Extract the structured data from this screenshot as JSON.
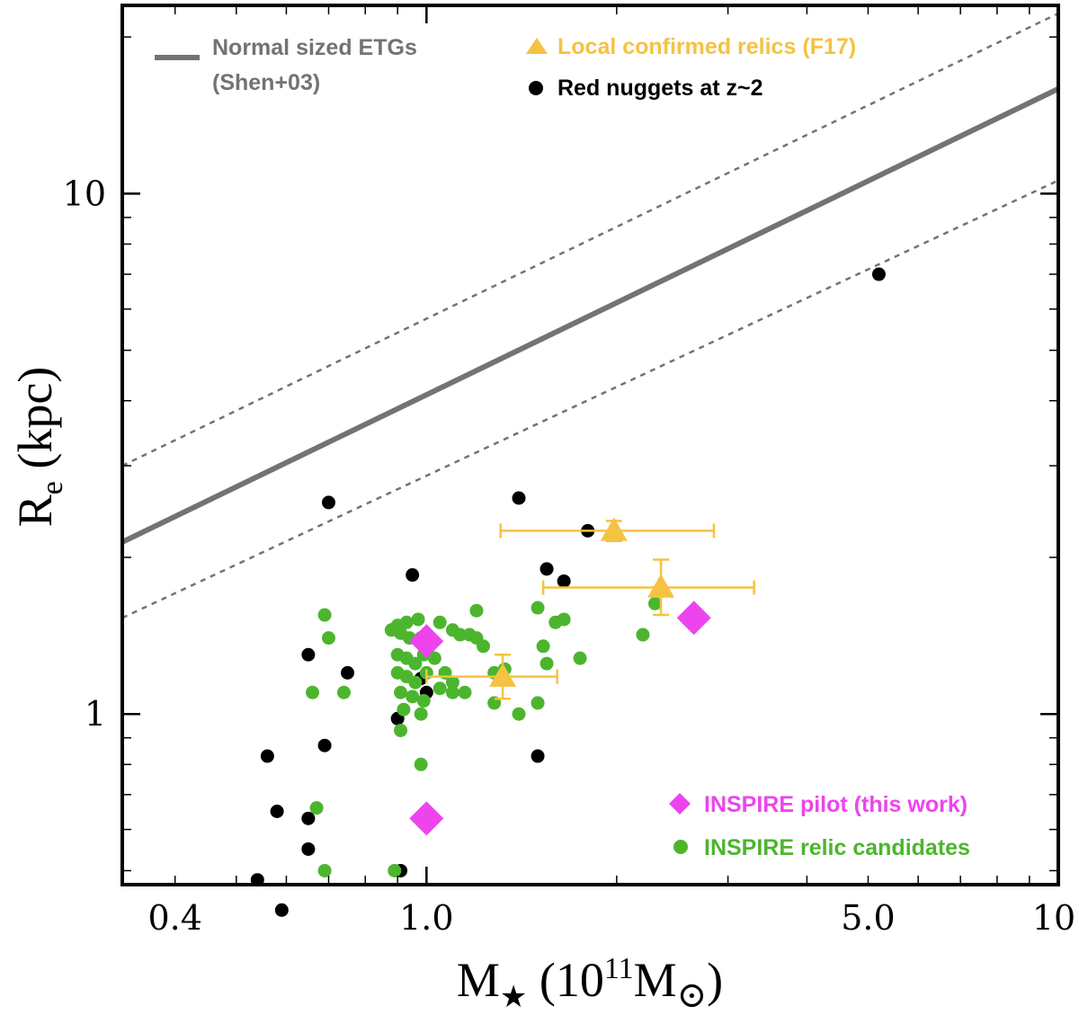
{
  "chart_data": {
    "type": "scatter",
    "x_scale": "log",
    "y_scale": "log",
    "xlim": [
      0.33,
      10
    ],
    "ylim": [
      0.47,
      23
    ],
    "x_ticks": [
      {
        "value": 0.4,
        "label": "0.4"
      },
      {
        "value": 1.0,
        "label": "1.0"
      },
      {
        "value": 5.0,
        "label": "5.0"
      },
      {
        "value": 10,
        "label": "10"
      }
    ],
    "y_ticks": [
      {
        "value": 1,
        "label": "1"
      },
      {
        "value": 10,
        "label": "10"
      }
    ],
    "xlabel": {
      "main": "M",
      "sub": "★",
      "paren_open": " (10",
      "sup": "11",
      "unit": "M",
      "unit_sub": "⊙",
      "paren_close": ")"
    },
    "ylabel": {
      "main": "R",
      "sub": "e",
      "rest": " (kpc)"
    },
    "grid": false,
    "legend_placement": "top-left and bottom-right",
    "colors": {
      "relation": "#737373",
      "relics": "#f5c242",
      "nuggets": "#000000",
      "pilot": "#ee44ee",
      "candidates": "#4cb52e"
    },
    "relation": {
      "name": "Normal sized ETGs",
      "name_line2": "(Shen+03)",
      "points": [
        [
          0.33,
          2.14
        ],
        [
          10,
          15.9
        ]
      ],
      "scatter_upper": [
        [
          0.33,
          3.0
        ],
        [
          10,
          22.2
        ]
      ],
      "scatter_lower": [
        [
          0.33,
          1.53
        ],
        [
          10,
          10.6
        ]
      ]
    },
    "series": [
      {
        "name": "Red nuggets at z~2",
        "marker": "circle",
        "points": [
          [
            0.7,
            2.55
          ],
          [
            1.4,
            2.6
          ],
          [
            1.8,
            2.25
          ],
          [
            1.55,
            1.9
          ],
          [
            1.65,
            1.8
          ],
          [
            0.95,
            1.85
          ],
          [
            0.65,
            1.3
          ],
          [
            0.75,
            1.2
          ],
          [
            0.98,
            1.17
          ],
          [
            1.0,
            1.1
          ],
          [
            0.9,
            0.98
          ],
          [
            0.69,
            0.87
          ],
          [
            0.56,
            0.83
          ],
          [
            1.5,
            0.83
          ],
          [
            0.58,
            0.65
          ],
          [
            0.65,
            0.63
          ],
          [
            0.65,
            0.55
          ],
          [
            0.91,
            0.5
          ],
          [
            0.54,
            0.48
          ],
          [
            0.59,
            0.42
          ],
          [
            5.2,
            7.0
          ]
        ]
      },
      {
        "name": "INSPIRE relic candidates",
        "marker": "circle",
        "points": [
          [
            0.69,
            1.55
          ],
          [
            0.7,
            1.4
          ],
          [
            0.66,
            1.1
          ],
          [
            0.74,
            1.1
          ],
          [
            0.9,
            1.48
          ],
          [
            0.93,
            1.5
          ],
          [
            0.97,
            1.52
          ],
          [
            1.05,
            1.5
          ],
          [
            1.1,
            1.45
          ],
          [
            1.2,
            1.58
          ],
          [
            1.13,
            1.42
          ],
          [
            1.17,
            1.42
          ],
          [
            1.2,
            1.4
          ],
          [
            1.23,
            1.35
          ],
          [
            0.88,
            1.45
          ],
          [
            0.91,
            1.43
          ],
          [
            0.94,
            1.4
          ],
          [
            0.98,
            1.4
          ],
          [
            1.01,
            1.35
          ],
          [
            0.9,
            1.3
          ],
          [
            0.93,
            1.28
          ],
          [
            0.96,
            1.25
          ],
          [
            0.99,
            1.3
          ],
          [
            1.03,
            1.28
          ],
          [
            0.9,
            1.2
          ],
          [
            0.93,
            1.18
          ],
          [
            0.96,
            1.15
          ],
          [
            1.0,
            1.2
          ],
          [
            1.07,
            1.2
          ],
          [
            0.91,
            1.1
          ],
          [
            0.95,
            1.08
          ],
          [
            0.99,
            1.06
          ],
          [
            1.05,
            1.12
          ],
          [
            1.1,
            1.1
          ],
          [
            0.92,
            1.02
          ],
          [
            1.1,
            1.15
          ],
          [
            1.15,
            1.1
          ],
          [
            0.98,
            1.0
          ],
          [
            0.91,
            0.93
          ],
          [
            1.28,
            1.2
          ],
          [
            1.33,
            1.22
          ],
          [
            1.28,
            1.05
          ],
          [
            1.4,
            1.0
          ],
          [
            1.5,
            1.05
          ],
          [
            1.55,
            1.25
          ],
          [
            1.53,
            1.35
          ],
          [
            1.6,
            1.5
          ],
          [
            1.65,
            1.52
          ],
          [
            1.5,
            1.6
          ],
          [
            1.75,
            1.28
          ],
          [
            2.2,
            1.42
          ],
          [
            2.3,
            1.63
          ],
          [
            0.98,
            0.8
          ],
          [
            0.67,
            0.66
          ],
          [
            0.69,
            0.5
          ],
          [
            0.89,
            0.5
          ]
        ]
      },
      {
        "name": "Local confirmed relics (F17)",
        "marker": "triangle",
        "points": [
          {
            "x": 1.32,
            "y": 1.18,
            "xerr": [
              1.0,
              1.61
            ],
            "yerr": [
              1.07,
              1.3
            ]
          },
          {
            "x": 1.98,
            "y": 2.25,
            "xerr": [
              1.31,
              2.85
            ],
            "yerr": [
              2.15,
              2.35
            ]
          },
          {
            "x": 2.35,
            "y": 1.75,
            "xerr": [
              1.53,
              3.3
            ],
            "yerr": [
              1.55,
              1.98
            ]
          }
        ]
      },
      {
        "name": "INSPIRE pilot (this work)",
        "marker": "diamond",
        "points": [
          [
            1.0,
            1.38
          ],
          [
            1.0,
            0.63
          ],
          [
            2.65,
            1.53
          ]
        ]
      }
    ]
  }
}
